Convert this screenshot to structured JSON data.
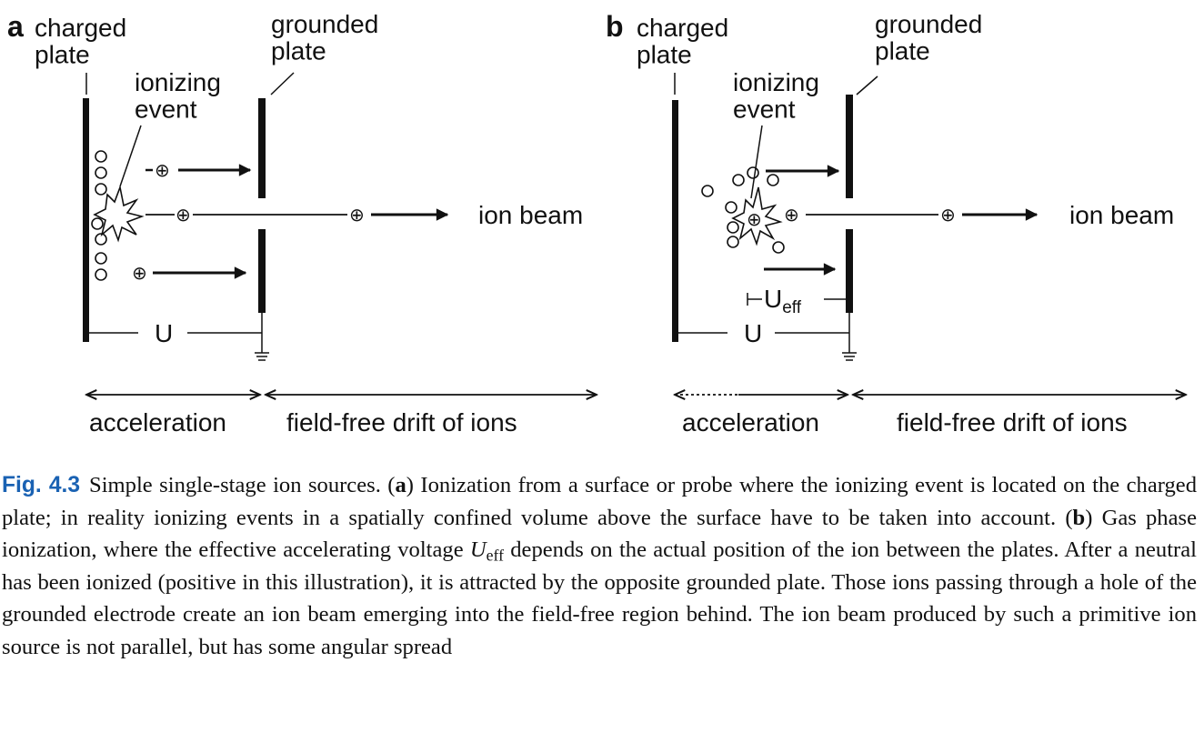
{
  "panels": [
    {
      "letter": "a",
      "charged_plate": "charged\nplate",
      "grounded_plate": "grounded\nplate",
      "ionizing_event": "ionizing\nevent",
      "ion_beam": "ion beam",
      "voltage": "U",
      "acceleration": "acceleration",
      "drift": "field-free drift of ions"
    },
    {
      "letter": "b",
      "charged_plate": "charged\nplate",
      "grounded_plate": "grounded\nplate",
      "ionizing_event": "ionizing\nevent",
      "ion_beam": "ion beam",
      "voltage": "U",
      "u_eff": "U",
      "u_eff_sub": "eff",
      "acceleration": "acceleration",
      "drift": "field-free drift of ions"
    }
  ],
  "ion_symbol": "⊕",
  "caption": {
    "label": "Fig. 4.3",
    "t1": "Simple single-stage ion sources. (",
    "a": "a",
    "t2": ") Ionization from a surface or probe where the ionizing event is located on the charged plate; in reality ionizing events in a spatially confined volume above the surface have to be taken into account. (",
    "b": "b",
    "t3": ") Gas phase ionization, where the effective accelerating voltage ",
    "var": "U",
    "sub": "eff",
    "t4": " depends on the actual position of the ion between the plates. After a neutral has been ionized (positive in this illustration), it is attracted by the opposite grounded plate. Those ions passing through a hole of the grounded electrode create an ion beam emerging into the field-free region behind. The ion beam produced by such a primitive ion source is not parallel, but has some angular spread"
  }
}
